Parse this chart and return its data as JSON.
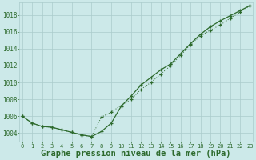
{
  "title": "Graphe pression niveau de la mer (hPa)",
  "bg_color": "#cce9e9",
  "grid_color": "#aacccc",
  "line_color": "#2d6a2d",
  "x_ticks": [
    0,
    1,
    2,
    3,
    4,
    5,
    6,
    7,
    8,
    9,
    10,
    11,
    12,
    13,
    14,
    15,
    16,
    17,
    18,
    19,
    20,
    21,
    22,
    23
  ],
  "ylim": [
    1003.0,
    1019.5
  ],
  "y_ticks": [
    1004,
    1006,
    1008,
    1010,
    1012,
    1014,
    1016,
    1018
  ],
  "series1": [
    1006.0,
    1005.2,
    1004.8,
    1004.7,
    1004.4,
    1004.1,
    1003.8,
    1003.6,
    1004.2,
    1005.2,
    1007.2,
    1008.4,
    1009.7,
    1010.6,
    1011.5,
    1012.2,
    1013.4,
    1014.6,
    1015.7,
    1016.6,
    1017.3,
    1017.9,
    1018.5,
    1019.1
  ],
  "series2": [
    1006.0,
    1005.2,
    1004.8,
    1004.7,
    1004.4,
    1004.1,
    1003.8,
    1003.6,
    1005.9,
    1006.5,
    1007.3,
    1008.0,
    1009.2,
    1010.0,
    1011.0,
    1012.0,
    1013.2,
    1014.5,
    1015.5,
    1016.2,
    1016.8,
    1017.6,
    1018.3,
    1019.1
  ],
  "tick_fontsize": 6,
  "xlabel_fontsize": 7.5
}
